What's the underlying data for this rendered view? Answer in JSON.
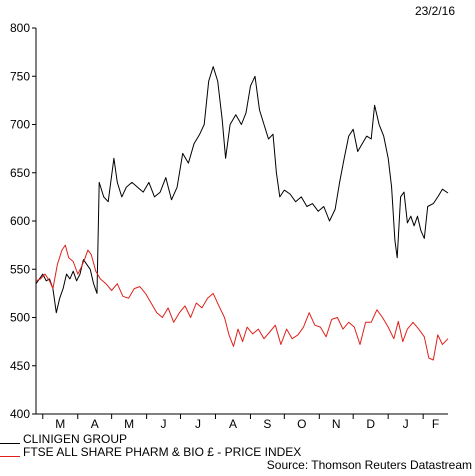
{
  "header": {
    "date": "23/2/16"
  },
  "footer": {
    "source": "Source: Thomson Reuters Datastream"
  },
  "chart_data": {
    "type": "line",
    "title": "",
    "xlabel": "",
    "ylabel": "",
    "ylim": [
      400,
      800
    ],
    "y_ticks": [
      400,
      450,
      500,
      550,
      600,
      650,
      700,
      750,
      800
    ],
    "x_month_labels": [
      "M",
      "A",
      "M",
      "J",
      "J",
      "A",
      "S",
      "O",
      "N",
      "D",
      "J",
      "F"
    ],
    "xlim": [
      "2015-02-23",
      "2016-02-23"
    ],
    "grid": false,
    "legend_position": "bottom-left",
    "series": [
      {
        "name": "CLINIGEN GROUP",
        "color": "#000000",
        "points": [
          [
            "2015-02-23",
            535
          ],
          [
            "2015-02-26",
            540
          ],
          [
            "2015-03-01",
            545
          ],
          [
            "2015-03-04",
            538
          ],
          [
            "2015-03-07",
            540
          ],
          [
            "2015-03-10",
            530
          ],
          [
            "2015-03-13",
            505
          ],
          [
            "2015-03-16",
            520
          ],
          [
            "2015-03-19",
            530
          ],
          [
            "2015-03-22",
            545
          ],
          [
            "2015-03-25",
            540
          ],
          [
            "2015-03-28",
            548
          ],
          [
            "2015-03-31",
            538
          ],
          [
            "2015-04-03",
            545
          ],
          [
            "2015-04-06",
            560
          ],
          [
            "2015-04-09",
            555
          ],
          [
            "2015-04-12",
            550
          ],
          [
            "2015-04-15",
            535
          ],
          [
            "2015-04-18",
            525
          ],
          [
            "2015-04-20",
            640
          ],
          [
            "2015-04-24",
            625
          ],
          [
            "2015-04-28",
            620
          ],
          [
            "2015-05-03",
            665
          ],
          [
            "2015-05-06",
            640
          ],
          [
            "2015-05-10",
            625
          ],
          [
            "2015-05-14",
            635
          ],
          [
            "2015-05-19",
            640
          ],
          [
            "2015-05-24",
            635
          ],
          [
            "2015-05-29",
            630
          ],
          [
            "2015-06-03",
            640
          ],
          [
            "2015-06-08",
            625
          ],
          [
            "2015-06-13",
            630
          ],
          [
            "2015-06-18",
            645
          ],
          [
            "2015-06-23",
            622
          ],
          [
            "2015-06-28",
            635
          ],
          [
            "2015-07-03",
            670
          ],
          [
            "2015-07-08",
            660
          ],
          [
            "2015-07-13",
            680
          ],
          [
            "2015-07-18",
            690
          ],
          [
            "2015-07-22",
            700
          ],
          [
            "2015-07-26",
            745
          ],
          [
            "2015-07-30",
            760
          ],
          [
            "2015-08-03",
            745
          ],
          [
            "2015-08-07",
            705
          ],
          [
            "2015-08-10",
            665
          ],
          [
            "2015-08-14",
            700
          ],
          [
            "2015-08-19",
            710
          ],
          [
            "2015-08-24",
            700
          ],
          [
            "2015-08-28",
            712
          ],
          [
            "2015-09-01",
            740
          ],
          [
            "2015-09-05",
            750
          ],
          [
            "2015-09-09",
            715
          ],
          [
            "2015-09-13",
            700
          ],
          [
            "2015-09-17",
            685
          ],
          [
            "2015-09-21",
            690
          ],
          [
            "2015-09-24",
            650
          ],
          [
            "2015-09-27",
            625
          ],
          [
            "2015-10-01",
            632
          ],
          [
            "2015-10-06",
            628
          ],
          [
            "2015-10-11",
            620
          ],
          [
            "2015-10-16",
            625
          ],
          [
            "2015-10-21",
            615
          ],
          [
            "2015-10-26",
            618
          ],
          [
            "2015-10-31",
            610
          ],
          [
            "2015-11-05",
            615
          ],
          [
            "2015-11-10",
            600
          ],
          [
            "2015-11-15",
            612
          ],
          [
            "2015-11-19",
            640
          ],
          [
            "2015-11-23",
            665
          ],
          [
            "2015-11-27",
            688
          ],
          [
            "2015-12-01",
            695
          ],
          [
            "2015-12-05",
            672
          ],
          [
            "2015-12-09",
            680
          ],
          [
            "2015-12-13",
            688
          ],
          [
            "2015-12-17",
            685
          ],
          [
            "2015-12-20",
            720
          ],
          [
            "2015-12-24",
            700
          ],
          [
            "2015-12-28",
            688
          ],
          [
            "2016-01-01",
            665
          ],
          [
            "2016-01-04",
            635
          ],
          [
            "2016-01-07",
            580
          ],
          [
            "2016-01-09",
            562
          ],
          [
            "2016-01-12",
            625
          ],
          [
            "2016-01-15",
            630
          ],
          [
            "2016-01-18",
            598
          ],
          [
            "2016-01-21",
            605
          ],
          [
            "2016-01-24",
            595
          ],
          [
            "2016-01-27",
            605
          ],
          [
            "2016-01-30",
            590
          ],
          [
            "2016-02-02",
            582
          ],
          [
            "2016-02-05",
            615
          ],
          [
            "2016-02-10",
            618
          ],
          [
            "2016-02-14",
            625
          ],
          [
            "2016-02-18",
            633
          ],
          [
            "2016-02-23",
            629
          ]
        ]
      },
      {
        "name": "FTSE ALL SHARE PHARM & BIO £ - PRICE INDEX",
        "color": "#e0201b",
        "points": [
          [
            "2015-02-23",
            538
          ],
          [
            "2015-02-27",
            540
          ],
          [
            "2015-03-03",
            545
          ],
          [
            "2015-03-07",
            538
          ],
          [
            "2015-03-10",
            530
          ],
          [
            "2015-03-14",
            555
          ],
          [
            "2015-03-18",
            570
          ],
          [
            "2015-03-21",
            575
          ],
          [
            "2015-03-24",
            562
          ],
          [
            "2015-03-28",
            558
          ],
          [
            "2015-04-01",
            545
          ],
          [
            "2015-04-04",
            552
          ],
          [
            "2015-04-07",
            560
          ],
          [
            "2015-04-10",
            570
          ],
          [
            "2015-04-13",
            565
          ],
          [
            "2015-04-17",
            548
          ],
          [
            "2015-04-21",
            540
          ],
          [
            "2015-04-26",
            535
          ],
          [
            "2015-05-01",
            528
          ],
          [
            "2015-05-06",
            535
          ],
          [
            "2015-05-11",
            522
          ],
          [
            "2015-05-16",
            520
          ],
          [
            "2015-05-21",
            530
          ],
          [
            "2015-05-26",
            532
          ],
          [
            "2015-05-31",
            525
          ],
          [
            "2015-06-05",
            515
          ],
          [
            "2015-06-10",
            505
          ],
          [
            "2015-06-15",
            500
          ],
          [
            "2015-06-20",
            510
          ],
          [
            "2015-06-25",
            495
          ],
          [
            "2015-06-30",
            505
          ],
          [
            "2015-07-05",
            512
          ],
          [
            "2015-07-10",
            500
          ],
          [
            "2015-07-15",
            515
          ],
          [
            "2015-07-20",
            510
          ],
          [
            "2015-07-25",
            520
          ],
          [
            "2015-07-30",
            525
          ],
          [
            "2015-08-04",
            512
          ],
          [
            "2015-08-09",
            500
          ],
          [
            "2015-08-13",
            482
          ],
          [
            "2015-08-17",
            470
          ],
          [
            "2015-08-21",
            488
          ],
          [
            "2015-08-25",
            475
          ],
          [
            "2015-08-29",
            490
          ],
          [
            "2015-09-03",
            483
          ],
          [
            "2015-09-08",
            488
          ],
          [
            "2015-09-13",
            478
          ],
          [
            "2015-09-18",
            485
          ],
          [
            "2015-09-23",
            492
          ],
          [
            "2015-09-28",
            472
          ],
          [
            "2015-10-03",
            488
          ],
          [
            "2015-10-08",
            478
          ],
          [
            "2015-10-13",
            482
          ],
          [
            "2015-10-18",
            490
          ],
          [
            "2015-10-23",
            505
          ],
          [
            "2015-10-28",
            492
          ],
          [
            "2015-11-02",
            490
          ],
          [
            "2015-11-07",
            480
          ],
          [
            "2015-11-12",
            498
          ],
          [
            "2015-11-17",
            500
          ],
          [
            "2015-11-22",
            488
          ],
          [
            "2015-11-27",
            495
          ],
          [
            "2015-12-02",
            490
          ],
          [
            "2015-12-07",
            472
          ],
          [
            "2015-12-12",
            495
          ],
          [
            "2015-12-17",
            495
          ],
          [
            "2015-12-22",
            508
          ],
          [
            "2015-12-27",
            500
          ],
          [
            "2016-01-01",
            490
          ],
          [
            "2016-01-06",
            478
          ],
          [
            "2016-01-10",
            496
          ],
          [
            "2016-01-14",
            475
          ],
          [
            "2016-01-18",
            488
          ],
          [
            "2016-01-23",
            495
          ],
          [
            "2016-01-28",
            488
          ],
          [
            "2016-02-02",
            480
          ],
          [
            "2016-02-06",
            458
          ],
          [
            "2016-02-10",
            456
          ],
          [
            "2016-02-14",
            482
          ],
          [
            "2016-02-18",
            472
          ],
          [
            "2016-02-23",
            478
          ]
        ]
      }
    ]
  }
}
